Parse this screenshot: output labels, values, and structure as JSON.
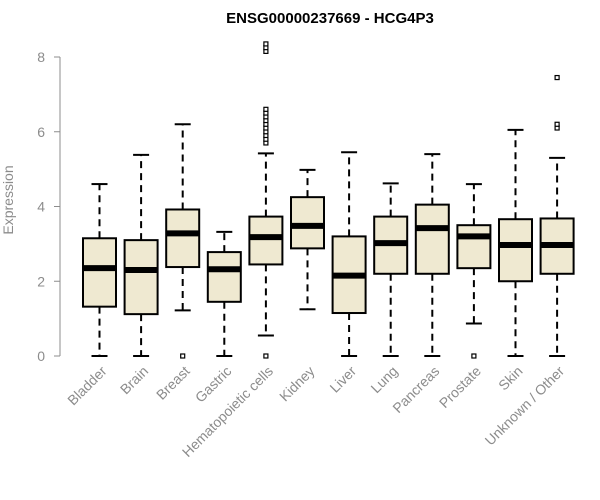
{
  "chart_data": {
    "type": "boxplot",
    "title": "ENSG00000237669 - HCG4P3",
    "xlabel": "",
    "ylabel": "Expression",
    "ylim": [
      0,
      8.2
    ],
    "yticks": [
      0,
      2,
      4,
      6,
      8
    ],
    "box_fill": "#efe9d1",
    "categories": [
      "Bladder",
      "Brain",
      "Breast",
      "Gastric",
      "Hematopoietic cells",
      "Kidney",
      "Liver",
      "Lung",
      "Pancreas",
      "Prostate",
      "Skin",
      "Unknown / Other"
    ],
    "boxes": [
      {
        "name": "Bladder",
        "whisker_low": 0,
        "q1": 1.32,
        "median": 2.35,
        "q3": 3.15,
        "whisker_high": 4.6,
        "outliers": []
      },
      {
        "name": "Brain",
        "whisker_low": 0,
        "q1": 1.12,
        "median": 2.3,
        "q3": 3.1,
        "whisker_high": 5.38,
        "outliers": []
      },
      {
        "name": "Breast",
        "whisker_low": 1.22,
        "q1": 2.38,
        "median": 3.28,
        "q3": 3.92,
        "whisker_high": 6.2,
        "outliers": [
          0
        ]
      },
      {
        "name": "Gastric",
        "whisker_low": 0,
        "q1": 1.45,
        "median": 2.32,
        "q3": 2.78,
        "whisker_high": 3.32,
        "outliers": []
      },
      {
        "name": "Hematopoietic cells",
        "whisker_low": 0.55,
        "q1": 2.45,
        "median": 3.18,
        "q3": 3.73,
        "whisker_high": 5.42,
        "outliers": [
          0,
          5.7,
          5.8,
          5.9,
          6.0,
          6.1,
          6.2,
          6.3,
          6.4,
          6.5,
          6.6,
          8.15,
          8.25,
          8.35
        ]
      },
      {
        "name": "Kidney",
        "whisker_low": 1.25,
        "q1": 2.88,
        "median": 3.48,
        "q3": 4.25,
        "whisker_high": 4.98,
        "outliers": []
      },
      {
        "name": "Liver",
        "whisker_low": 0,
        "q1": 1.15,
        "median": 2.15,
        "q3": 3.2,
        "whisker_high": 5.45,
        "outliers": []
      },
      {
        "name": "Lung",
        "whisker_low": 0,
        "q1": 2.2,
        "median": 3.02,
        "q3": 3.73,
        "whisker_high": 4.62,
        "outliers": []
      },
      {
        "name": "Pancreas",
        "whisker_low": 0,
        "q1": 2.2,
        "median": 3.42,
        "q3": 4.05,
        "whisker_high": 5.4,
        "outliers": []
      },
      {
        "name": "Prostate",
        "whisker_low": 0.87,
        "q1": 2.35,
        "median": 3.2,
        "q3": 3.5,
        "whisker_high": 4.6,
        "outliers": [
          0
        ]
      },
      {
        "name": "Skin",
        "whisker_low": 0,
        "q1": 2.0,
        "median": 2.97,
        "q3": 3.66,
        "whisker_high": 6.05,
        "outliers": []
      },
      {
        "name": "Unknown / Other",
        "whisker_low": 0,
        "q1": 2.2,
        "median": 2.97,
        "q3": 3.68,
        "whisker_high": 5.3,
        "outliers": [
          6.1,
          6.2,
          7.45
        ]
      }
    ]
  }
}
